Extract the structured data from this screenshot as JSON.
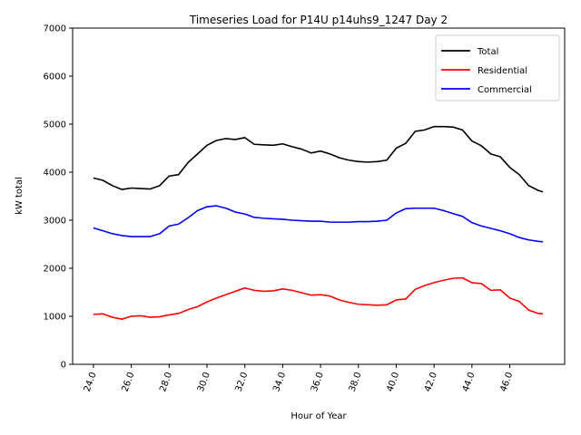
{
  "chart_data": {
    "type": "line",
    "title": "Timeseries Load for P14U p14uhs9_1247  Day 2",
    "xlabel": "Hour of Year",
    "ylabel": "kW total",
    "xlim": [
      22.9,
      48.9
    ],
    "ylim": [
      0,
      7000
    ],
    "xticks": [
      24,
      26,
      28,
      30,
      32,
      34,
      36,
      38,
      40,
      42,
      44,
      46
    ],
    "xtick_labels": [
      "24.0",
      "26.0",
      "28.0",
      "30.0",
      "32.0",
      "34.0",
      "36.0",
      "38.0",
      "40.0",
      "42.0",
      "44.0",
      "46.0"
    ],
    "yticks": [
      0,
      1000,
      2000,
      3000,
      4000,
      5000,
      6000,
      7000
    ],
    "ytick_labels": [
      "0",
      "1000",
      "2000",
      "3000",
      "4000",
      "5000",
      "6000",
      "7000"
    ],
    "legend_position": "top-right",
    "x": [
      24.0,
      24.5,
      25.0,
      25.5,
      26.0,
      26.5,
      27.0,
      27.5,
      28.0,
      28.5,
      29.0,
      29.5,
      30.0,
      30.5,
      31.0,
      31.5,
      32.0,
      32.5,
      33.0,
      33.5,
      34.0,
      34.5,
      35.0,
      35.5,
      36.0,
      36.5,
      37.0,
      37.5,
      38.0,
      38.5,
      39.0,
      39.5,
      40.0,
      40.5,
      41.0,
      41.5,
      42.0,
      42.5,
      43.0,
      43.5,
      44.0,
      44.5,
      45.0,
      45.5,
      46.0,
      46.5,
      47.0,
      47.5,
      47.75
    ],
    "series": [
      {
        "name": "Total",
        "color": "#000000",
        "values": [
          3880,
          3830,
          3720,
          3640,
          3670,
          3660,
          3650,
          3720,
          3920,
          3950,
          4200,
          4380,
          4560,
          4660,
          4700,
          4680,
          4720,
          4580,
          4570,
          4560,
          4590,
          4530,
          4480,
          4400,
          4440,
          4380,
          4300,
          4250,
          4220,
          4210,
          4220,
          4250,
          4500,
          4600,
          4850,
          4880,
          4950,
          4950,
          4940,
          4880,
          4650,
          4550,
          4380,
          4320,
          4100,
          3950,
          3720,
          3620,
          3590
        ]
      },
      {
        "name": "Residential",
        "color": "#ff0000",
        "values": [
          1040,
          1050,
          980,
          940,
          1000,
          1010,
          980,
          990,
          1030,
          1060,
          1140,
          1200,
          1300,
          1380,
          1450,
          1520,
          1590,
          1540,
          1520,
          1530,
          1570,
          1540,
          1490,
          1440,
          1450,
          1420,
          1340,
          1290,
          1250,
          1240,
          1230,
          1240,
          1340,
          1360,
          1560,
          1640,
          1700,
          1750,
          1790,
          1800,
          1700,
          1680,
          1540,
          1550,
          1380,
          1310,
          1130,
          1060,
          1050
        ]
      },
      {
        "name": "Commercial",
        "color": "#0000ff",
        "values": [
          2840,
          2780,
          2720,
          2680,
          2660,
          2660,
          2660,
          2720,
          2880,
          2920,
          3050,
          3200,
          3280,
          3300,
          3250,
          3170,
          3130,
          3060,
          3040,
          3030,
          3020,
          3000,
          2990,
          2980,
          2980,
          2960,
          2960,
          2960,
          2970,
          2970,
          2980,
          3000,
          3150,
          3240,
          3250,
          3250,
          3250,
          3200,
          3140,
          3080,
          2950,
          2880,
          2830,
          2780,
          2720,
          2640,
          2590,
          2560,
          2550
        ]
      }
    ]
  }
}
